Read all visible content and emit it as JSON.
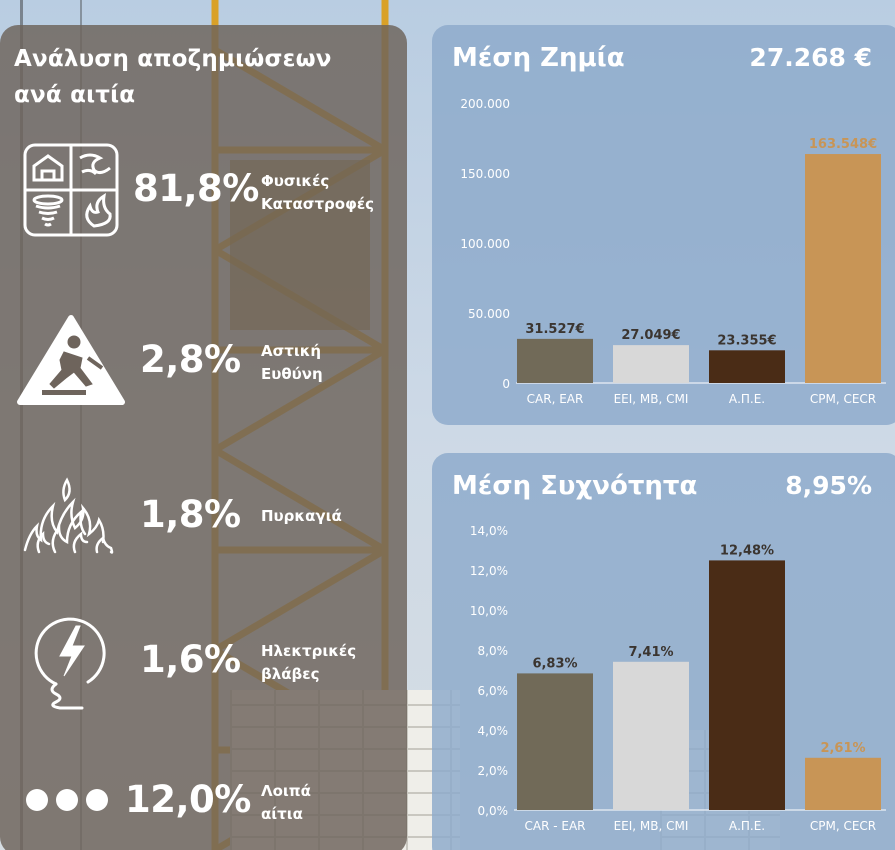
{
  "left": {
    "title_line1": "Ανάλυση αποζημιώσεων",
    "title_line2": "ανά αιτία",
    "causes": [
      {
        "pct": "81,8%",
        "label_line1": "Φυσικές",
        "label_line2": "Καταστροφές",
        "icon": "natural-disasters-icon"
      },
      {
        "pct": "2,8%",
        "label_line1": "Αστική",
        "label_line2": "Ευθύνη",
        "icon": "slip-warning-icon"
      },
      {
        "pct": "1,8%",
        "label_line1": "Πυρκαγιά",
        "label_line2": "",
        "icon": "fire-icon"
      },
      {
        "pct": "1,6%",
        "label_line1": "Ηλεκτρικές",
        "label_line2": "βλάβες",
        "icon": "electric-bolt-icon"
      },
      {
        "pct": "12,0%",
        "label_line1": "Λοιπά",
        "label_line2": "αίτια",
        "icon": "three-dots-icon"
      }
    ]
  },
  "colors": {
    "car": "#716a58",
    "eei": "#d8d8d8",
    "ape": "#4a2c16",
    "cpm": "#c89556",
    "left_panel": "#6e645c",
    "right_panel": "#8caaca"
  },
  "chart_data": [
    {
      "type": "bar",
      "title": "Μέση Ζημία",
      "headline_value": "27.268 €",
      "categories": [
        "CAR, EAR",
        "EEI, MB, CMI",
        "Α.Π.Ε.",
        "CPM, CECR"
      ],
      "values": [
        31527,
        27049,
        23355,
        163548
      ],
      "data_labels": [
        "31.527€",
        "27.049€",
        "23.355€",
        "163.548€"
      ],
      "ylim": [
        0,
        200000
      ],
      "yticks": [
        0,
        50000,
        100000,
        150000,
        200000
      ],
      "ytick_labels": [
        "0",
        "50.000",
        "100.000",
        "150.000",
        "200.000"
      ],
      "grid": false,
      "colors": [
        "#716a58",
        "#d8d8d8",
        "#4a2c16",
        "#c89556"
      ],
      "label_colors": [
        "#3b3530",
        "#3b3530",
        "#3b3530",
        "#c89556"
      ]
    },
    {
      "type": "bar",
      "title": "Μέση Συχνότητα",
      "headline_value": "8,95%",
      "categories": [
        "CAR - EAR",
        "EEI, MB, CMI",
        "Α.Π.Ε.",
        "CPM, CECR"
      ],
      "values": [
        6.83,
        7.41,
        12.48,
        2.61
      ],
      "data_labels": [
        "6,83%",
        "7,41%",
        "12,48%",
        "2,61%"
      ],
      "ylim": [
        0,
        14
      ],
      "yticks": [
        0,
        2,
        4,
        6,
        8,
        10,
        12,
        14
      ],
      "ytick_labels": [
        "0,0%",
        "2,0%",
        "4,0%",
        "6,0%",
        "8,0%",
        "10,0%",
        "12,0%",
        "14,0%"
      ],
      "grid": false,
      "colors": [
        "#716a58",
        "#d8d8d8",
        "#4a2c16",
        "#c89556"
      ],
      "label_colors": [
        "#3b3530",
        "#3b3530",
        "#3b3530",
        "#c89556"
      ]
    }
  ]
}
